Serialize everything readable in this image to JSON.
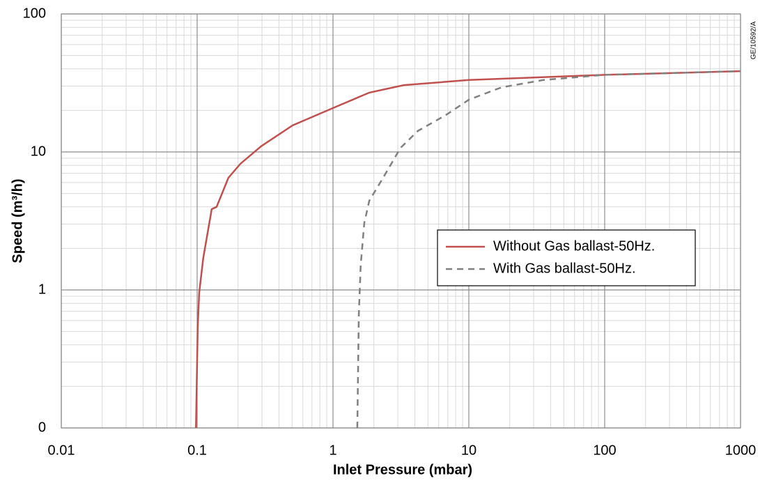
{
  "chart_data": {
    "type": "line",
    "xlabel": "Inlet Pressure (mbar)",
    "ylabel": "Speed (m³/h)",
    "annotation": "GE/10592/A",
    "xscale": "log",
    "yscale": "log",
    "xlim": [
      0.01,
      1000
    ],
    "ylim": [
      0.1,
      100
    ],
    "xticks": [
      0.01,
      0.1,
      1,
      10,
      100,
      1000
    ],
    "yticks": [
      {
        "value": 0.1,
        "label": "0"
      },
      1,
      10,
      100
    ],
    "grid": true,
    "legend": "center right",
    "series": [
      {
        "name": "Without Gas ballast-50Hz.",
        "color": "#c0504d",
        "line_style": "solid",
        "x": [
          0.098,
          0.101,
          0.1035,
          0.111,
          0.128,
          0.139,
          0.17,
          0.208,
          0.296,
          0.505,
          1,
          1.85,
          3.33,
          10,
          100,
          1000
        ],
        "values": [
          0.1,
          0.53,
          0.95,
          1.71,
          3.85,
          4.0,
          6.5,
          8.2,
          11,
          15.6,
          20.8,
          26.9,
          30.5,
          33.2,
          36.2,
          38.5
        ]
      },
      {
        "name": "With Gas ballast-50Hz.",
        "color": "#808080",
        "line_style": "dashed",
        "x": [
          1.51,
          1.55,
          1.6,
          1.7,
          1.85,
          2.34,
          3.14,
          4.22,
          6.77,
          10,
          17.4,
          35.4,
          100,
          1000
        ],
        "values": [
          0.1,
          0.67,
          1.52,
          3.05,
          4.43,
          6.5,
          10.7,
          14.2,
          18.5,
          23.9,
          29.4,
          33.2,
          36.2,
          38.5
        ]
      }
    ]
  }
}
